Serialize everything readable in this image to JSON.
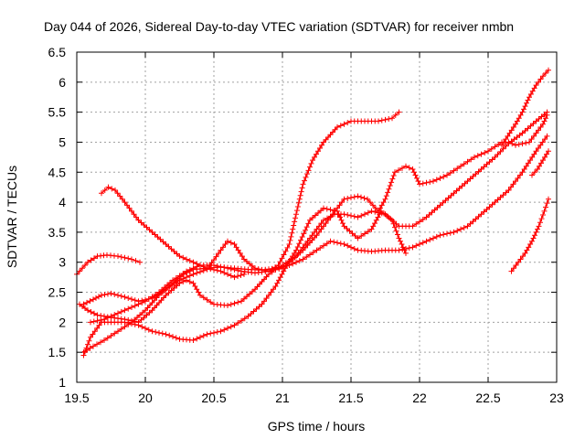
{
  "chart_data": {
    "type": "scatter",
    "title": "Day 044 of 2026, Sidereal Day-to-day VTEC variation (SDTVAR) for receiver nmbn",
    "xlabel": "GPS time / hours",
    "ylabel": "SDTVAR / TECUs",
    "xlim": [
      19.5,
      23
    ],
    "ylim": [
      1,
      6.5
    ],
    "xticks": [
      19.5,
      20,
      20.5,
      21,
      21.5,
      22,
      22.5,
      23
    ],
    "xtick_labels": [
      "19.5",
      "20",
      "20.5",
      "21",
      "21.5",
      "22",
      "22.5",
      "23"
    ],
    "yticks": [
      1,
      1.5,
      2,
      2.5,
      3,
      3.5,
      4,
      4.5,
      5,
      5.5,
      6,
      6.5
    ],
    "ytick_labels": [
      "1",
      "1.5",
      "2",
      "2.5",
      "3",
      "3.5",
      "4",
      "4.5",
      "5",
      "5.5",
      "6",
      "6.5"
    ],
    "grid": true,
    "marker": "plus",
    "color": "#ff0000",
    "series": [
      {
        "name": "s1",
        "x": [
          19.68,
          19.73,
          19.78,
          19.85,
          19.95,
          20.05,
          20.15,
          20.25,
          20.35,
          20.45,
          20.55,
          20.65,
          20.72
        ],
        "y": [
          4.15,
          4.25,
          4.2,
          4.0,
          3.7,
          3.5,
          3.3,
          3.1,
          3.0,
          2.9,
          2.85,
          2.75,
          2.8
        ]
      },
      {
        "name": "s2",
        "x": [
          19.5,
          19.58,
          19.65,
          19.72,
          19.8,
          19.9,
          19.96
        ],
        "y": [
          2.8,
          3.0,
          3.1,
          3.12,
          3.1,
          3.05,
          3.0
        ]
      },
      {
        "name": "s3",
        "x": [
          19.55,
          19.62,
          19.68,
          19.75,
          19.85,
          19.95,
          20.05,
          20.15,
          20.25,
          20.35,
          20.45,
          20.55,
          20.6,
          20.65,
          20.72,
          20.8,
          20.9,
          21.0,
          21.05
        ],
        "y": [
          2.3,
          2.38,
          2.45,
          2.48,
          2.42,
          2.35,
          2.4,
          2.55,
          2.7,
          2.8,
          2.88,
          3.2,
          3.35,
          3.3,
          3.05,
          2.9,
          2.85,
          2.9,
          3.0
        ]
      },
      {
        "name": "s4",
        "x": [
          19.52,
          19.58,
          19.65,
          19.75,
          19.85,
          19.95,
          20.05,
          20.15,
          20.25,
          20.3,
          20.35,
          20.4,
          20.5,
          20.6,
          20.7,
          20.8,
          20.9,
          21.0,
          21.1,
          21.2,
          21.3,
          21.38,
          21.45,
          21.55,
          21.65,
          21.75,
          21.85,
          21.95,
          22.05,
          22.15,
          22.25,
          22.35,
          22.45,
          22.55,
          22.65,
          22.75,
          22.85,
          22.93
        ],
        "y": [
          2.3,
          2.2,
          2.12,
          2.08,
          2.05,
          2.0,
          2.2,
          2.45,
          2.65,
          2.7,
          2.65,
          2.45,
          2.3,
          2.28,
          2.35,
          2.55,
          2.8,
          2.95,
          3.1,
          3.4,
          3.7,
          3.8,
          3.8,
          3.75,
          3.85,
          3.8,
          3.6,
          3.6,
          3.75,
          3.95,
          4.15,
          4.35,
          4.55,
          4.75,
          4.98,
          5.15,
          5.35,
          5.5
        ]
      },
      {
        "name": "s5",
        "x": [
          19.55,
          19.62,
          19.7,
          19.8,
          19.9,
          20.0,
          20.1,
          20.2,
          20.28,
          20.35,
          20.45,
          20.55,
          20.65,
          20.75,
          20.85,
          20.95,
          21.05,
          21.15,
          21.25,
          21.35,
          21.45,
          21.55,
          21.65,
          21.75,
          21.85,
          21.95,
          22.05,
          22.15,
          22.25,
          22.35,
          22.45,
          22.55,
          22.65,
          22.75,
          22.85,
          22.93
        ],
        "y": [
          1.5,
          1.6,
          1.7,
          1.85,
          2.0,
          2.2,
          2.45,
          2.65,
          2.8,
          2.88,
          2.9,
          2.92,
          2.9,
          2.88,
          2.87,
          2.9,
          2.95,
          3.05,
          3.2,
          3.35,
          3.3,
          3.2,
          3.18,
          3.2,
          3.2,
          3.25,
          3.35,
          3.45,
          3.5,
          3.6,
          3.8,
          4.0,
          4.2,
          4.5,
          4.85,
          5.1
        ]
      },
      {
        "name": "s6",
        "x": [
          19.55,
          19.6,
          19.68,
          19.75,
          19.85,
          19.95,
          20.05,
          20.15,
          20.25,
          20.35,
          20.45,
          20.55,
          20.65,
          20.75,
          20.85,
          20.95,
          21.02,
          21.1,
          21.2,
          21.3,
          21.4,
          21.45,
          21.55,
          21.65,
          21.72,
          21.8,
          21.85,
          21.9
        ],
        "y": [
          1.45,
          1.75,
          2.0,
          2.0,
          2.0,
          1.95,
          1.85,
          1.8,
          1.72,
          1.7,
          1.8,
          1.85,
          1.95,
          2.1,
          2.3,
          2.6,
          2.9,
          3.2,
          3.7,
          3.9,
          3.85,
          3.6,
          3.4,
          3.55,
          3.85,
          3.7,
          3.4,
          3.15
        ]
      },
      {
        "name": "s7",
        "x": [
          19.6,
          19.7,
          19.8,
          19.9,
          20.0,
          20.1,
          20.2,
          20.3,
          20.4,
          20.5,
          20.6,
          20.7,
          20.8,
          20.9,
          20.97,
          21.05,
          21.1,
          21.15,
          21.22,
          21.3,
          21.4,
          21.5,
          21.6,
          21.7,
          21.8,
          21.85
        ],
        "y": [
          2.0,
          2.05,
          2.15,
          2.25,
          2.35,
          2.5,
          2.7,
          2.85,
          2.95,
          2.95,
          2.9,
          2.85,
          2.82,
          2.85,
          2.95,
          3.3,
          3.8,
          4.3,
          4.7,
          5.0,
          5.25,
          5.35,
          5.35,
          5.35,
          5.4,
          5.5
        ]
      },
      {
        "name": "s8",
        "x": [
          21.05,
          21.15,
          21.25,
          21.35,
          21.45,
          21.55,
          21.62,
          21.7,
          21.75,
          21.82,
          21.9,
          21.95,
          22.0,
          22.1,
          22.2,
          22.3,
          22.4,
          22.5,
          22.6,
          22.65,
          22.7,
          22.8,
          22.9,
          22.93
        ],
        "y": [
          3.0,
          3.2,
          3.45,
          3.75,
          4.05,
          4.1,
          4.05,
          3.85,
          4.05,
          4.5,
          4.6,
          4.55,
          4.3,
          4.35,
          4.45,
          4.6,
          4.75,
          4.85,
          5.0,
          5.0,
          4.95,
          5.0,
          5.3,
          5.45
        ]
      },
      {
        "name": "s9",
        "x": [
          22.6,
          22.7,
          22.75,
          22.8,
          22.85,
          22.9,
          22.94
        ],
        "y": [
          4.95,
          5.3,
          5.5,
          5.75,
          5.95,
          6.1,
          6.2
        ]
      },
      {
        "name": "s10",
        "x": [
          22.67,
          22.72,
          22.77,
          22.82,
          22.87,
          22.91,
          22.94
        ],
        "y": [
          2.85,
          3.0,
          3.15,
          3.35,
          3.6,
          3.85,
          4.05
        ]
      },
      {
        "name": "s11",
        "x": [
          22.82,
          22.86,
          22.9,
          22.94
        ],
        "y": [
          4.45,
          4.55,
          4.7,
          4.85
        ]
      }
    ]
  }
}
